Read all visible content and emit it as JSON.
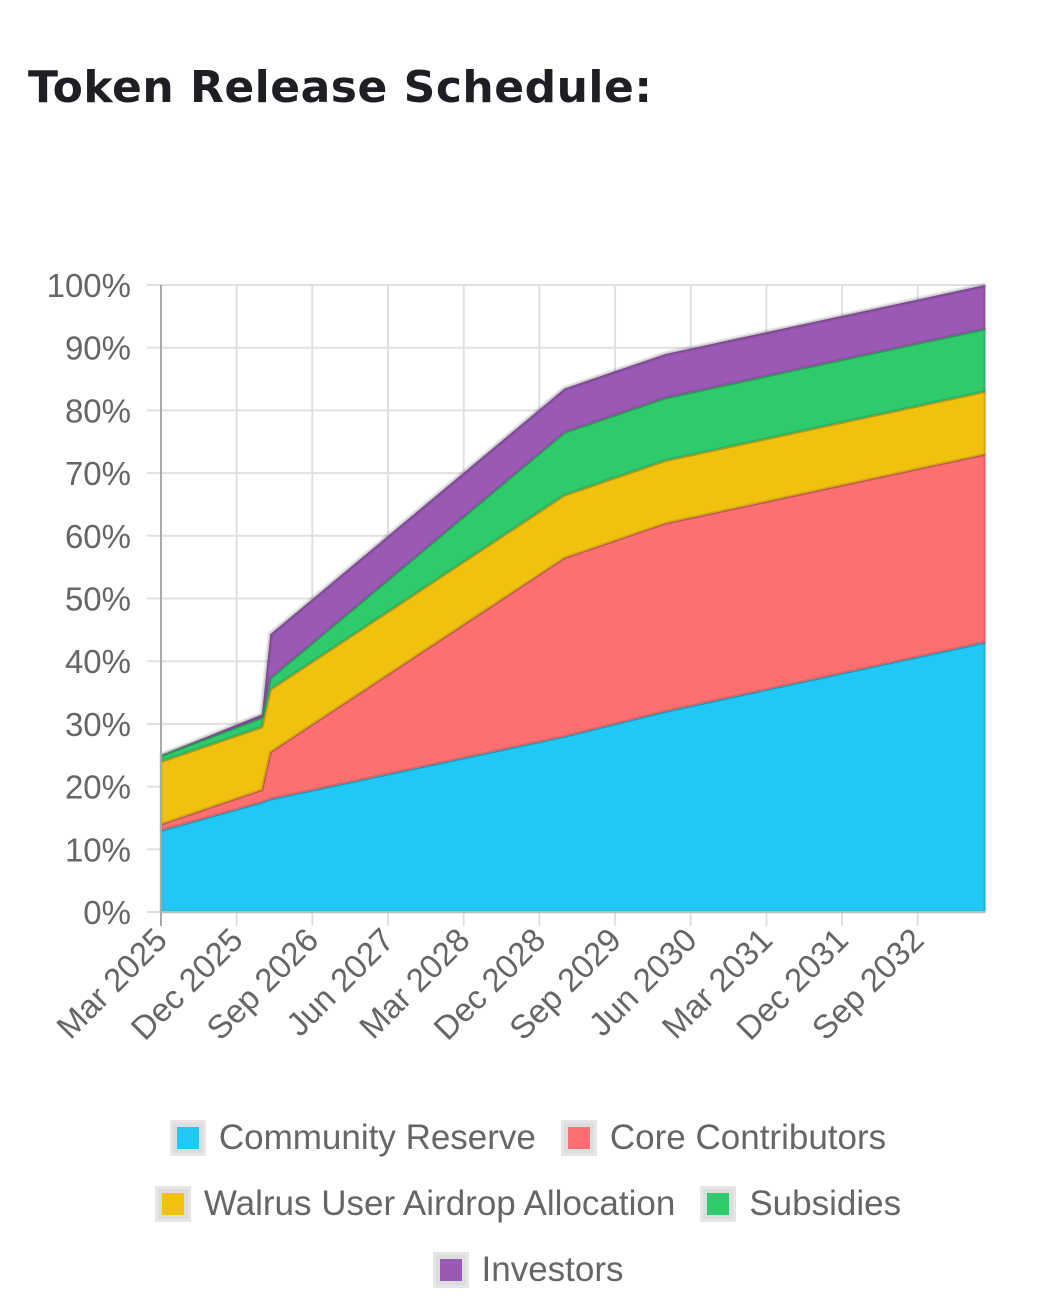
{
  "page": {
    "title": "Token Release Schedule:"
  },
  "chart_data": {
    "type": "area",
    "stacked": true,
    "title": "",
    "xlabel": "",
    "ylabel": "",
    "ylim": [
      0,
      100
    ],
    "xlim": [
      "2025-03",
      "2033-05"
    ],
    "y_tick_labels": [
      "0%",
      "10%",
      "20%",
      "30%",
      "40%",
      "50%",
      "60%",
      "70%",
      "80%",
      "90%",
      "100%"
    ],
    "y_ticks": [
      0,
      10,
      20,
      30,
      40,
      50,
      60,
      70,
      80,
      90,
      100
    ],
    "x_tick_labels": [
      "Mar 2025",
      "Dec 2025",
      "Sep 2026",
      "Jun 2027",
      "Mar 2028",
      "Dec 2028",
      "Sep 2029",
      "Jun 2030",
      "Mar 2031",
      "Dec 2031",
      "Sep 2032"
    ],
    "x_ticks": [
      "2025-03",
      "2025-12",
      "2026-09",
      "2027-06",
      "2028-03",
      "2028-12",
      "2029-09",
      "2030-06",
      "2031-03",
      "2031-12",
      "2032-09"
    ],
    "grid": true,
    "legend_position": "bottom",
    "x": [
      "2025-03",
      "2026-03",
      "2026-04",
      "2029-03",
      "2030-03",
      "2033-05"
    ],
    "series": [
      {
        "name": "Community Reserve",
        "color": "#22c8f5",
        "values": [
          13,
          17.5,
          18,
          28,
          32,
          43
        ]
      },
      {
        "name": "Core Contributors",
        "color": "#fe6f6f",
        "values": [
          1,
          2,
          7.5,
          28.5,
          30,
          30
        ]
      },
      {
        "name": "Walrus User Airdrop Allocation",
        "color": "#f0c20f",
        "values": [
          10,
          10,
          10,
          10,
          10,
          10
        ]
      },
      {
        "name": "Subsidies",
        "color": "#2eca6c",
        "values": [
          1,
          1.5,
          1.8,
          10,
          10,
          10
        ]
      },
      {
        "name": "Investors",
        "color": "#9b59b6",
        "values": [
          0,
          0.5,
          7,
          7,
          7,
          7
        ]
      }
    ]
  }
}
